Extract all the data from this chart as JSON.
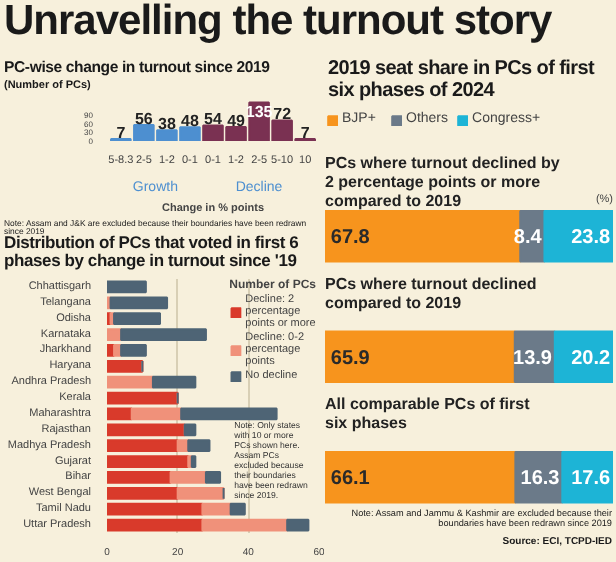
{
  "chart_data": [
    {
      "type": "bar",
      "title": "Unravelling the turnout story",
      "subtitle": "PC-wise change in turnout since 2019",
      "ylabel": "(Number of PCs)",
      "xlabel": "Change in % points",
      "categories": [
        "5-8.3",
        "2-5",
        "1-2",
        "0-1",
        "0-1",
        "1-2",
        "2-5",
        "5-10",
        "10"
      ],
      "series": [
        {
          "name": "Growth",
          "color": "#4d8fd0",
          "values": [
            7,
            56,
            38,
            48,
            null,
            null,
            null,
            null,
            null
          ]
        },
        {
          "name": "Decline",
          "color": "#7a3152",
          "values": [
            null,
            null,
            null,
            null,
            54,
            49,
            135,
            72,
            7
          ]
        }
      ],
      "ylim": [
        0,
        140
      ],
      "yticks": [
        0,
        30,
        60,
        90
      ],
      "data_labels": true,
      "annotations": [
        "Note: Assam and J&K are excluded because their boundaries have been redrawn since 2019"
      ]
    },
    {
      "type": "bar",
      "orientation": "horizontal",
      "stacked": true,
      "title": "Distribution of PCs that voted in first 6 phases by change in turnout since '19",
      "categories": [
        "Chhattisgarh",
        "Telangana",
        "Odisha",
        "Karnataka",
        "Jharkhand",
        "Haryana",
        "Andhra Pradesh",
        "Kerala",
        "Maharashtra",
        "Rajasthan",
        "Madhya Pradesh",
        "Gujarat",
        "Bihar",
        "West Bengal",
        "Tamil Nadu",
        "Uttar Pradesh"
      ],
      "series": [
        {
          "name": "Decline: 2 percentage points or more",
          "color": "#d93a2b",
          "values": [
            0,
            0,
            1,
            0,
            2,
            10,
            0,
            20,
            7,
            22,
            20,
            23,
            18,
            20,
            27,
            27
          ]
        },
        {
          "name": "Decline: 0-2 percentage points",
          "color": "#f0917a",
          "values": [
            0,
            1,
            1,
            4,
            2,
            0,
            13,
            0,
            14,
            0,
            3,
            1,
            10,
            13,
            8,
            24
          ]
        },
        {
          "name": "No decline",
          "color": "#4e6475",
          "values": [
            11,
            16,
            13,
            24,
            7,
            0,
            12,
            0,
            27,
            3,
            6,
            1,
            4,
            0,
            4,
            6
          ]
        }
      ],
      "xlim": [
        0,
        60
      ],
      "xticks": [
        0,
        20,
        40,
        60
      ],
      "grid": "x",
      "legend": "top right",
      "legend_title": "Number of PCs",
      "annotations": [
        "Note: Only states with 10 or more PCs shown here. Assam PCs excluded because their boundaries have been redrawn since 2019."
      ]
    },
    {
      "type": "bar",
      "orientation": "horizontal",
      "stacked": true,
      "title": "2019 seat share in PCs of first six phases of 2024",
      "ylabel": "(%)",
      "categories": [
        "PCs where turnout declined by 2 percentage points or more compared to 2019",
        "PCs where turnout declined compared to 2019",
        "All comparable PCs of first six phases"
      ],
      "series": [
        {
          "name": "BJP+",
          "color": "#f7941d",
          "values": [
            67.8,
            65.9,
            66.1
          ]
        },
        {
          "name": "Others",
          "color": "#6b7a89",
          "values": [
            8.4,
            13.9,
            16.3
          ]
        },
        {
          "name": "Congress+",
          "color": "#1db4d6",
          "values": [
            23.8,
            20.2,
            17.6
          ]
        }
      ],
      "data_labels": true,
      "legend": "top",
      "annotations": [
        "Note: Assam and Jammu & Kashmir are excluded because their boundaries have been redrawn since 2019",
        "Source: ECI, TCPD-IED"
      ]
    }
  ]
}
